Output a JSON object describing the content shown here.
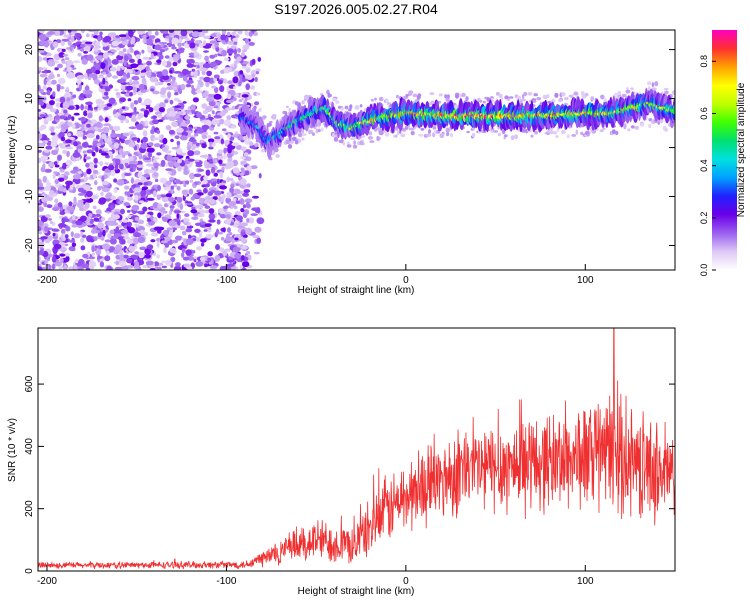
{
  "title": "S197.2026.005.02.27.R04",
  "chart_data": [
    {
      "type": "heatmap",
      "name": "spectrogram",
      "xlabel": "Height of straight line (km)",
      "ylabel": "Frequency (Hz)",
      "xlim": [
        -205,
        150
      ],
      "ylim": [
        -25,
        24
      ],
      "xticks": [
        -200,
        -100,
        0,
        100
      ],
      "xtick_labels": [
        "-200",
        "-100",
        "0",
        "100"
      ],
      "yticks": [
        -20,
        -10,
        0,
        10,
        20
      ],
      "ytick_labels": [
        "-20",
        "-10",
        "0",
        "10",
        "20"
      ],
      "colorbar": {
        "label": "Normalized spectral amplitude",
        "range": [
          0.0,
          0.92
        ],
        "ticks": [
          0.0,
          0.2,
          0.4,
          0.6,
          0.8
        ],
        "tick_labels": [
          "0.0",
          "0.2",
          "0.4",
          "0.6",
          "0.8"
        ],
        "colors": [
          "#ffffff",
          "#ddc8f5",
          "#9b5ff0",
          "#6a00e8",
          "#2020ff",
          "#00a0ff",
          "#00e0e0",
          "#00e070",
          "#40ff00",
          "#c0ff00",
          "#ffff00",
          "#ffa000",
          "#ff3030",
          "#ff00c0"
        ]
      },
      "noise_region": {
        "x": [
          -205,
          -87
        ],
        "freq": [
          -25,
          24
        ],
        "amplitude": 0.15
      },
      "ridge": [
        {
          "x": -90,
          "f": 6
        },
        {
          "x": -82,
          "f": 4
        },
        {
          "x": -77,
          "f": 1
        },
        {
          "x": -70,
          "f": 3
        },
        {
          "x": -60,
          "f": 5.5
        },
        {
          "x": -52,
          "f": 7
        },
        {
          "x": -45,
          "f": 8
        },
        {
          "x": -38,
          "f": 5
        },
        {
          "x": -30,
          "f": 4
        },
        {
          "x": -25,
          "f": 5
        },
        {
          "x": -15,
          "f": 6
        },
        {
          "x": 0,
          "f": 7
        },
        {
          "x": 25,
          "f": 6.5
        },
        {
          "x": 50,
          "f": 6.5
        },
        {
          "x": 75,
          "f": 6.5
        },
        {
          "x": 100,
          "f": 7
        },
        {
          "x": 115,
          "f": 7
        },
        {
          "x": 125,
          "f": 8
        },
        {
          "x": 135,
          "f": 9
        },
        {
          "x": 150,
          "f": 7.5
        }
      ],
      "ridge_peak_amplitude": [
        {
          "x": -90,
          "a": 0.35
        },
        {
          "x": -50,
          "a": 0.55
        },
        {
          "x": -20,
          "a": 0.7
        },
        {
          "x": 0,
          "a": 0.8
        },
        {
          "x": 40,
          "a": 0.85
        },
        {
          "x": 90,
          "a": 0.75
        },
        {
          "x": 150,
          "a": 0.65
        }
      ]
    },
    {
      "type": "line",
      "name": "snr",
      "xlabel": "Height of straight line (km)",
      "ylabel": "SNR (10 * v/v)",
      "xlim": [
        -205,
        150
      ],
      "ylim": [
        0,
        780
      ],
      "xticks": [
        -200,
        -100,
        0,
        100
      ],
      "xtick_labels": [
        "-200",
        "-100",
        "0",
        "100"
      ],
      "yticks": [
        0,
        200,
        400,
        600
      ],
      "ytick_labels": [
        "0",
        "200",
        "400",
        "600"
      ],
      "color": "#f03030",
      "envelope": [
        {
          "x": -205,
          "mean": 18,
          "spread": 10
        },
        {
          "x": -90,
          "mean": 20,
          "spread": 12
        },
        {
          "x": -80,
          "mean": 40,
          "spread": 30
        },
        {
          "x": -65,
          "mean": 70,
          "spread": 50
        },
        {
          "x": -50,
          "mean": 100,
          "spread": 70
        },
        {
          "x": -30,
          "mean": 80,
          "spread": 60
        },
        {
          "x": -20,
          "mean": 140,
          "spread": 90
        },
        {
          "x": -10,
          "mean": 200,
          "spread": 110
        },
        {
          "x": 10,
          "mean": 270,
          "spread": 120
        },
        {
          "x": 30,
          "mean": 320,
          "spread": 140
        },
        {
          "x": 60,
          "mean": 340,
          "spread": 150
        },
        {
          "x": 90,
          "mean": 360,
          "spread": 160
        },
        {
          "x": 115,
          "mean": 380,
          "spread": 190
        },
        {
          "x": 130,
          "mean": 340,
          "spread": 170
        },
        {
          "x": 150,
          "mean": 300,
          "spread": 150
        }
      ],
      "peak": {
        "x": 116,
        "y": 780
      }
    }
  ]
}
